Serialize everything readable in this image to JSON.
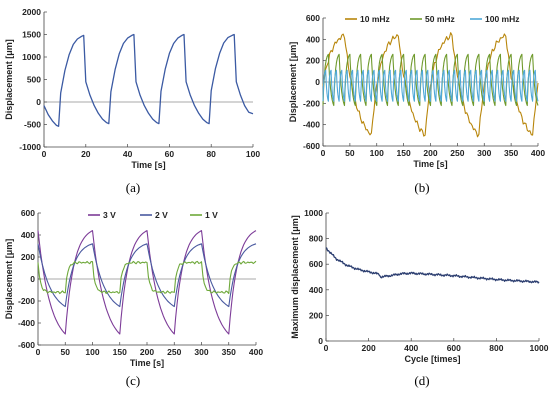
{
  "panels": [
    {
      "id": "a",
      "caption": "(a)",
      "chart_data": {
        "type": "line",
        "xlabel": "Time [s]",
        "ylabel": "Displacement [μm]",
        "xlim": [
          0,
          100
        ],
        "ylim": [
          -1000,
          2000
        ],
        "xticks": [
          0,
          20,
          40,
          60,
          80,
          100
        ],
        "yticks": [
          -1000,
          -500,
          0,
          500,
          1000,
          1500,
          2000
        ],
        "legend": "none",
        "grid": false,
        "series": [
          {
            "color": "#3b5aa3",
            "x": [
              0,
              2,
              4,
              6,
              7,
              8,
              10,
              12,
              14,
              16,
              18,
              19,
              20,
              22,
              24,
              26,
              28,
              30,
              31,
              32,
              34,
              36,
              38,
              40,
              42,
              43,
              44,
              46,
              48,
              50,
              52,
              54,
              55,
              56,
              58,
              60,
              62,
              64,
              66,
              67,
              68,
              70,
              72,
              74,
              76,
              78,
              79,
              80,
              82,
              84,
              86,
              88,
              90,
              91,
              92,
              94,
              96,
              98,
              100
            ],
            "y": [
              -80,
              -280,
              -420,
              -520,
              -540,
              200,
              700,
              1050,
              1280,
              1400,
              1460,
              1480,
              450,
              150,
              -80,
              -250,
              -380,
              -460,
              -480,
              230,
              720,
              1070,
              1300,
              1420,
              1480,
              1500,
              450,
              150,
              -80,
              -250,
              -380,
              -460,
              -480,
              240,
              730,
              1080,
              1300,
              1420,
              1480,
              1500,
              450,
              150,
              -80,
              -250,
              -380,
              -460,
              -480,
              250,
              740,
              1080,
              1310,
              1430,
              1480,
              1500,
              450,
              150,
              -80,
              -230,
              -260
            ]
          }
        ]
      }
    },
    {
      "id": "b",
      "caption": "(b)",
      "chart_data": {
        "type": "line",
        "xlabel": "Time [s]",
        "ylabel": "Displacement [μm]",
        "xlim": [
          0,
          400
        ],
        "ylim": [
          -600,
          600
        ],
        "xticks": [
          0,
          50,
          100,
          150,
          200,
          250,
          300,
          350,
          400
        ],
        "yticks": [
          -600,
          -400,
          -200,
          0,
          200,
          400,
          600
        ],
        "legend": "top",
        "grid": false,
        "series": [
          {
            "name": "10 mHz",
            "color": "#b8860b",
            "shape": "sawtooth",
            "period": 100,
            "offset": -10,
            "amplitude": [
              -500,
              440
            ],
            "ripple": [
              40,
              20
            ]
          },
          {
            "name": "50 mHz",
            "color": "#6f9a2c",
            "shape": "sawtooth",
            "period": 20,
            "offset": 0,
            "amplitude": [
              -220,
              260
            ],
            "ripple": [
              0,
              0
            ]
          },
          {
            "name": "100 mHz",
            "color": "#4fa8d8",
            "shape": "sawtooth",
            "period": 10,
            "offset": 0,
            "amplitude": [
              -180,
              110
            ],
            "ripple": [
              0,
              0
            ]
          }
        ]
      }
    },
    {
      "id": "c",
      "caption": "(c)",
      "chart_data": {
        "type": "line",
        "xlabel": "Time [s]",
        "ylabel": "Displacement [μm]",
        "xlim": [
          0,
          400
        ],
        "ylim": [
          -600,
          600
        ],
        "xticks": [
          0,
          50,
          100,
          150,
          200,
          250,
          300,
          350,
          400
        ],
        "yticks": [
          -600,
          -400,
          -200,
          0,
          200,
          400,
          600
        ],
        "legend": "top",
        "grid": false,
        "series": [
          {
            "name": "3 V",
            "color": "#7d3c98",
            "shape": "sawtooth",
            "period": 100,
            "offset": -50,
            "amplitude": [
              -500,
              440
            ],
            "ripple": [
              0,
              0
            ]
          },
          {
            "name": "2 V",
            "color": "#4a5aa0",
            "shape": "sawtooth",
            "period": 100,
            "offset": -50,
            "amplitude": [
              -250,
              320
            ],
            "ripple": [
              0,
              0
            ]
          },
          {
            "name": "1 V",
            "color": "#6ea83a",
            "shape": "square",
            "period": 100,
            "offset": -50,
            "amplitude": [
              -120,
              150
            ],
            "ripple": [
              15,
              10
            ]
          }
        ]
      }
    },
    {
      "id": "d",
      "caption": "(d)",
      "chart_data": {
        "type": "line",
        "xlabel": "Cycle [times]",
        "ylabel": "Maximum displacement [μm]",
        "xlim": [
          0,
          1000
        ],
        "ylim": [
          0,
          1000
        ],
        "xticks": [
          0,
          200,
          400,
          600,
          800,
          1000
        ],
        "yticks": [
          0,
          200,
          400,
          600,
          800,
          1000
        ],
        "legend": "none",
        "grid": false,
        "series": [
          {
            "color": "#2c3e70",
            "x": [
              0,
              20,
              50,
              100,
              150,
              200,
              230,
              250,
              255,
              300,
              350,
              400,
              500,
              600,
              700,
              800,
              900,
              1000
            ],
            "y": [
              730,
              690,
              640,
              590,
              560,
              540,
              530,
              520,
              500,
              510,
              525,
              530,
              520,
              510,
              495,
              480,
              470,
              460
            ]
          }
        ]
      }
    }
  ]
}
